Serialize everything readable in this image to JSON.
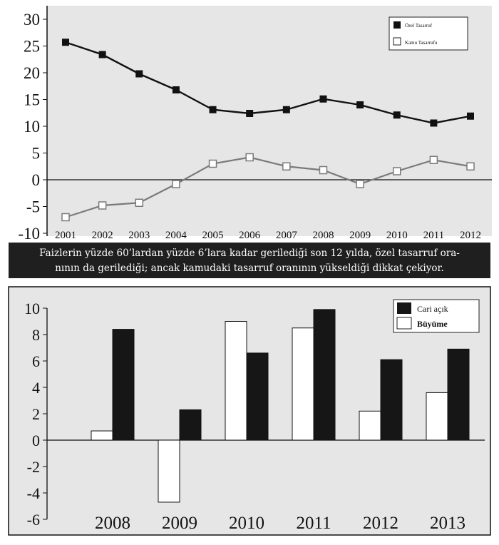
{
  "chart_data": [
    {
      "type": "line",
      "title": "",
      "xlabel": "",
      "ylabel": "",
      "x": [
        "2001",
        "2002",
        "2003",
        "2004",
        "2005",
        "2006",
        "2007",
        "2008",
        "2009",
        "2010",
        "2011",
        "2012"
      ],
      "ylim": [
        -10,
        30
      ],
      "yticks": [
        30,
        25,
        20,
        15,
        10,
        5,
        0,
        -5,
        -10
      ],
      "grid": false,
      "legend_position": "top-right",
      "series": [
        {
          "name": "Özel Tasarruf",
          "color": "#111111",
          "marker": "filled-square",
          "values": [
            25.7,
            23.4,
            19.8,
            16.8,
            13.1,
            12.4,
            13.1,
            15.1,
            14.0,
            12.1,
            10.6,
            11.9
          ]
        },
        {
          "name": "Kamu Tasarrufu",
          "color": "#7a7a7a",
          "marker": "open-square",
          "values": [
            -7.0,
            -4.8,
            -4.3,
            -0.8,
            3.0,
            4.2,
            2.5,
            1.8,
            -0.8,
            1.6,
            3.7,
            2.5
          ]
        }
      ]
    },
    {
      "type": "bar",
      "title": "",
      "xlabel": "",
      "ylabel": "",
      "categories": [
        "2008",
        "2009",
        "2010",
        "2011",
        "2012",
        "2013"
      ],
      "ylim": [
        -6,
        10
      ],
      "yticks": [
        "10",
        "8",
        "6",
        "4",
        "2",
        "0",
        "-2",
        "-4",
        "-6"
      ],
      "grid": false,
      "legend_position": "top-right",
      "series": [
        {
          "name": "Büyüme",
          "color": "#ffffff",
          "values": [
            0.7,
            -4.7,
            9.0,
            8.5,
            2.2,
            3.6
          ]
        },
        {
          "name": "Cari açık",
          "color": "#161616",
          "values": [
            8.4,
            2.3,
            6.6,
            9.9,
            6.1,
            6.9
          ]
        }
      ]
    }
  ],
  "caption": {
    "line1": "Faizlerin yüzde 60’lardan yüzde 6’lara kadar gerilediği son 12 yılda, özel tasarruf ora-",
    "line2": "nının da gerilediği; ancak kamudaki tasarruf oranının yükseldiği dikkat çekiyor."
  },
  "colors": {
    "panel_bg": "#e6e6e6",
    "caption_bg": "#1f1f1f",
    "dark": "#111111",
    "grey_line": "#7a7a7a"
  }
}
